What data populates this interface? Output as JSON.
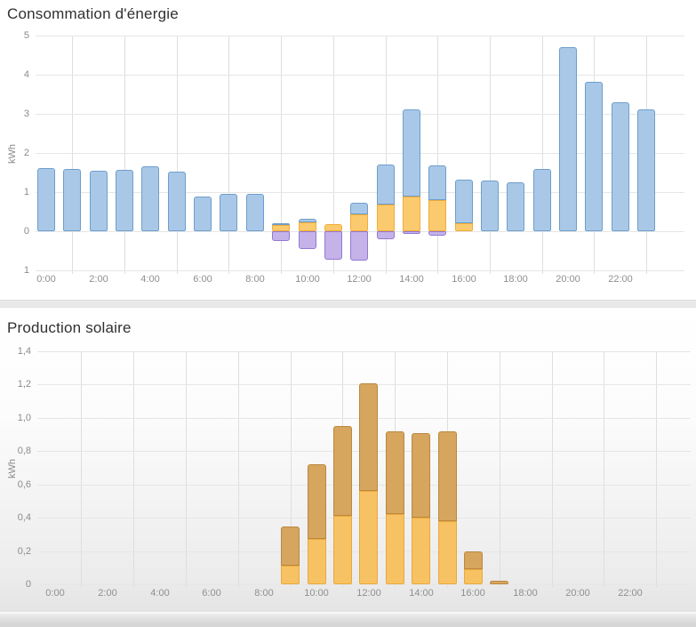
{
  "chart_data": [
    {
      "type": "bar",
      "title": "Consommation d'énergie",
      "ylabel": "kWh",
      "ylim": [
        -1,
        5
      ],
      "y_tick_labels": [
        "5",
        "4",
        "3",
        "2",
        "1",
        "0",
        "1"
      ],
      "y_tick_values": [
        5,
        4,
        3,
        2,
        1,
        0,
        -1
      ],
      "x_tick_labels": [
        "0:00",
        "2:00",
        "4:00",
        "6:00",
        "8:00",
        "10:00",
        "12:00",
        "14:00",
        "16:00",
        "18:00",
        "20:00",
        "22:00"
      ],
      "grid": "on",
      "legend": "none",
      "colors": {
        "blue": {
          "fill": "#a9c8e8",
          "stroke": "#6e9ecb"
        },
        "orange": {
          "fill": "#fcca6e",
          "stroke": "#f0ac38"
        },
        "purple": {
          "fill": "#c4b2e9",
          "stroke": "#9379d1"
        }
      },
      "bars": [
        {
          "x": "0:00",
          "blue": [
            0,
            1.61
          ]
        },
        {
          "x": "1:00",
          "blue": [
            0,
            1.59
          ]
        },
        {
          "x": "2:00",
          "blue": [
            0,
            1.55
          ]
        },
        {
          "x": "3:00",
          "blue": [
            0,
            1.57
          ]
        },
        {
          "x": "4:00",
          "blue": [
            0,
            1.66
          ]
        },
        {
          "x": "5:00",
          "blue": [
            0,
            1.53
          ]
        },
        {
          "x": "6:00",
          "blue": [
            0,
            0.89
          ]
        },
        {
          "x": "7:00",
          "blue": [
            0,
            0.95
          ]
        },
        {
          "x": "8:00",
          "blue": [
            0,
            0.95
          ]
        },
        {
          "x": "9:00",
          "orange": [
            0,
            0.16
          ],
          "blue": [
            0.16,
            0.2
          ],
          "purple": [
            -0.24,
            0
          ]
        },
        {
          "x": "10:00",
          "orange": [
            0,
            0.22
          ],
          "blue": [
            0.22,
            0.31
          ],
          "purple": [
            -0.46,
            0
          ]
        },
        {
          "x": "11:00",
          "orange": [
            0,
            0.19
          ],
          "purple": [
            -0.73,
            0
          ]
        },
        {
          "x": "12:00",
          "orange": [
            0,
            0.44
          ],
          "blue": [
            0.44,
            0.72
          ],
          "purple": [
            -0.75,
            0
          ]
        },
        {
          "x": "13:00",
          "orange": [
            0,
            0.68
          ],
          "blue": [
            0.68,
            1.7
          ],
          "purple": [
            -0.21,
            0
          ]
        },
        {
          "x": "14:00",
          "orange": [
            0,
            0.88
          ],
          "blue": [
            0.88,
            3.11
          ],
          "purple": [
            -0.06,
            0
          ]
        },
        {
          "x": "15:00",
          "orange": [
            0,
            0.79
          ],
          "blue": [
            0.79,
            1.68
          ],
          "purple": [
            -0.11,
            0
          ]
        },
        {
          "x": "16:00",
          "orange": [
            0,
            0.21
          ],
          "blue": [
            0.21,
            1.32
          ]
        },
        {
          "x": "17:00",
          "blue": [
            0,
            1.3
          ]
        },
        {
          "x": "18:00",
          "blue": [
            0,
            1.25
          ]
        },
        {
          "x": "19:00",
          "blue": [
            0,
            1.58
          ]
        },
        {
          "x": "20:00",
          "blue": [
            0,
            4.7
          ]
        },
        {
          "x": "21:00",
          "blue": [
            0,
            3.82
          ]
        },
        {
          "x": "22:00",
          "blue": [
            0,
            3.3
          ]
        },
        {
          "x": "23:00",
          "blue": [
            0,
            3.12
          ]
        }
      ]
    },
    {
      "type": "bar",
      "title": "Production solaire",
      "ylabel": "kWh",
      "ylim": [
        0,
        1.4
      ],
      "y_tick_labels": [
        "1,4",
        "1,2",
        "1,0",
        "0,8",
        "0,6",
        "0,4",
        "0,2",
        "0"
      ],
      "y_tick_values": [
        1.4,
        1.2,
        1.0,
        0.8,
        0.6,
        0.4,
        0.2,
        0
      ],
      "x_tick_labels": [
        "0:00",
        "2:00",
        "4:00",
        "6:00",
        "8:00",
        "10:00",
        "12:00",
        "14:00",
        "16:00",
        "18:00",
        "20:00",
        "22:00"
      ],
      "grid": "on",
      "legend": "none",
      "colors": {
        "bright": {
          "fill": "#f7c263",
          "stroke": "#eaa93c"
        },
        "dark": {
          "fill": "#d6a55e",
          "stroke": "#bb8840"
        }
      },
      "bars": [
        {
          "x": "9:00",
          "bright": [
            0,
            0.11
          ],
          "dark": [
            0.11,
            0.35
          ]
        },
        {
          "x": "10:00",
          "bright": [
            0,
            0.27
          ],
          "dark": [
            0.27,
            0.72
          ]
        },
        {
          "x": "11:00",
          "bright": [
            0,
            0.41
          ],
          "dark": [
            0.41,
            0.95
          ]
        },
        {
          "x": "12:00",
          "bright": [
            0,
            0.56
          ],
          "dark": [
            0.56,
            1.21
          ]
        },
        {
          "x": "13:00",
          "bright": [
            0,
            0.42
          ],
          "dark": [
            0.42,
            0.92
          ]
        },
        {
          "x": "14:00",
          "bright": [
            0,
            0.4
          ],
          "dark": [
            0.4,
            0.91
          ]
        },
        {
          "x": "15:00",
          "bright": [
            0,
            0.38
          ],
          "dark": [
            0.38,
            0.92
          ]
        },
        {
          "x": "16:00",
          "bright": [
            0,
            0.09
          ],
          "dark": [
            0.09,
            0.2
          ]
        },
        {
          "x": "17:00",
          "dark": [
            0,
            0.02
          ]
        }
      ]
    }
  ]
}
